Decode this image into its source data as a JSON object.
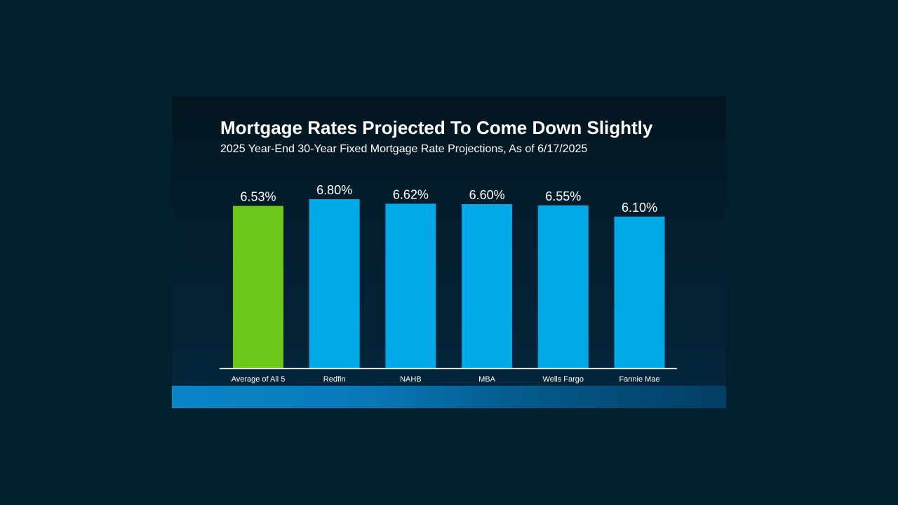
{
  "slide": {
    "title": "Mortgage Rates Projected To Come Down Slightly",
    "subtitle": "2025 Year-End 30-Year Fixed Mortgage Rate Projections, As of 6/17/2025"
  },
  "colors": {
    "background": "#01202f",
    "highlight_bar": "#6ec619",
    "bar": "#00a8e8",
    "text": "#ffffff"
  },
  "chart_data": {
    "type": "bar",
    "title": "Mortgage Rates Projected To Come Down Slightly",
    "subtitle": "2025 Year-End 30-Year Fixed Mortgage Rate Projections, As of 6/17/2025",
    "categories": [
      "Average of All 5",
      "Redfin",
      "NAHB",
      "MBA",
      "Wells Fargo",
      "Fannie Mae"
    ],
    "values": [
      6.53,
      6.8,
      6.62,
      6.6,
      6.55,
      6.1
    ],
    "data_labels": [
      "6.53%",
      "6.80%",
      "6.62%",
      "6.60%",
      "6.55%",
      "6.10%"
    ],
    "highlight_index": 0,
    "xlabel": "",
    "ylabel": "",
    "ylim": [
      0,
      6.8
    ],
    "grid": false,
    "legend": "none"
  }
}
